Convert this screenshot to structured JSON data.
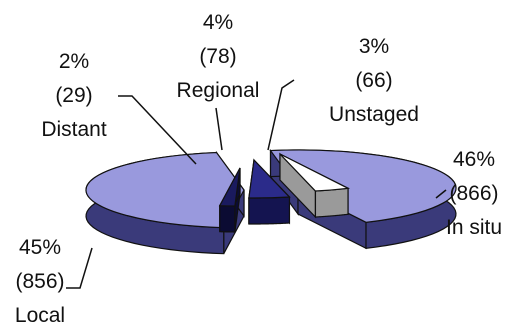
{
  "chart_data": {
    "type": "pie",
    "style": "exploded 3D pie",
    "slices": [
      {
        "label": "In situ",
        "percent": "46%",
        "count": "(866)",
        "value": 866,
        "color": "#9999dd",
        "side": "#3a3a7a"
      },
      {
        "label": "Local",
        "percent": "45%",
        "count": "(856)",
        "value": 856,
        "color": "#9999dd",
        "side": "#3a3a7a"
      },
      {
        "label": "Distant",
        "percent": "2%",
        "count": "(29)",
        "value": 29,
        "color": "#1a1a5e",
        "side": "#0b0b33"
      },
      {
        "label": "Regional",
        "percent": "4%",
        "count": "(78)",
        "value": 78,
        "color": "#2b2b8a",
        "side": "#141450"
      },
      {
        "label": "Unstaged",
        "percent": "3%",
        "count": "(66)",
        "value": 66,
        "color": "#ffffff",
        "side": "#9a9a9a"
      }
    ]
  }
}
